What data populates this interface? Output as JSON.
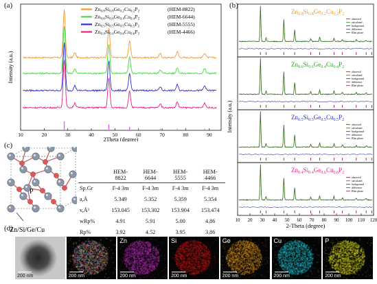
{
  "panels": {
    "a": "(a)",
    "b": "(b)",
    "c": "(c)",
    "d": "(d)"
  },
  "panel_a": {
    "xlabel": "2Theta (degree)",
    "ylabel": "Intensity (a.u.)",
    "xticks": [
      "10",
      "20",
      "30",
      "40",
      "50",
      "60",
      "70",
      "80",
      "90"
    ],
    "legend": [
      {
        "formula": "Zn0.8Si0.8Ge0.2Cu0.2P2",
        "parts": [
          [
            "Zn",
            ""
          ],
          [
            "0.8",
            "s"
          ],
          [
            "Si",
            ""
          ],
          [
            "0.8",
            "s"
          ],
          [
            "Ge",
            ""
          ],
          [
            "0.2",
            "s"
          ],
          [
            "Cu",
            ""
          ],
          [
            "0.2",
            "s"
          ],
          [
            "P",
            ""
          ],
          [
            "2",
            "s"
          ]
        ],
        "code": "(HEM-8822)",
        "color": "#f39a2e"
      },
      {
        "formula": "Zn0.6Si0.6Ge0.4Cu0.4P2",
        "parts": [
          [
            "Zn",
            ""
          ],
          [
            "0.6",
            "s"
          ],
          [
            "Si",
            ""
          ],
          [
            "0.6",
            "s"
          ],
          [
            "Ge",
            ""
          ],
          [
            "0.4",
            "s"
          ],
          [
            "Cu",
            ""
          ],
          [
            "0.4",
            "s"
          ],
          [
            "P",
            ""
          ],
          [
            "2",
            "s"
          ]
        ],
        "code": "(HEM-6644)",
        "color": "#3fdc3c"
      },
      {
        "formula": "Zn0.5Si0.5Ge0.5Cu0.5P2",
        "parts": [
          [
            "Zn",
            ""
          ],
          [
            "0.5",
            "s"
          ],
          [
            "Si",
            ""
          ],
          [
            "0.5",
            "s"
          ],
          [
            "Ge",
            ""
          ],
          [
            "0.5",
            "s"
          ],
          [
            "Cu",
            ""
          ],
          [
            "0.5",
            "s"
          ],
          [
            "P",
            ""
          ],
          [
            "2",
            "s"
          ]
        ],
        "code": "(HEM-5555)",
        "color": "#2a2ad6"
      },
      {
        "formula": "Zn0.4Si0.4Ge0.6Cu0.6P2",
        "parts": [
          [
            "Zn",
            ""
          ],
          [
            "0.4",
            "s"
          ],
          [
            "Si",
            ""
          ],
          [
            "0.4",
            "s"
          ],
          [
            "Ge",
            ""
          ],
          [
            "0.6",
            "s"
          ],
          [
            "Cu",
            ""
          ],
          [
            "0.6",
            "s"
          ],
          [
            "P",
            ""
          ],
          [
            "2",
            "s"
          ]
        ],
        "code": "(HEM-4466)",
        "color": "#e8207e"
      }
    ],
    "reference_color": "#e066e0"
  },
  "panel_b": {
    "xlabel": "2-Theta (degree)",
    "ylabel": "Intensity (a.u.)",
    "xticks": [
      "10",
      "20",
      "30",
      "40",
      "50",
      "60",
      "70",
      "80",
      "90",
      "100",
      "110",
      "120"
    ],
    "subplots": [
      {
        "parts": [
          [
            "Zn",
            ""
          ],
          [
            "0.8",
            "s"
          ],
          [
            "Si",
            ""
          ],
          [
            "0.8",
            "s"
          ],
          [
            "Ge",
            ""
          ],
          [
            "0.2",
            "s"
          ],
          [
            "Cu",
            ""
          ],
          [
            "0.2",
            "s"
          ],
          [
            "P",
            ""
          ],
          [
            "2",
            "s"
          ]
        ],
        "color": "#f39a2e"
      },
      {
        "parts": [
          [
            "Zn",
            ""
          ],
          [
            "0.6",
            "s"
          ],
          [
            "Si",
            ""
          ],
          [
            "0.6",
            "s"
          ],
          [
            "Ge",
            ""
          ],
          [
            "0.4",
            "s"
          ],
          [
            "Cu",
            ""
          ],
          [
            "0.4",
            "s"
          ],
          [
            "P",
            ""
          ],
          [
            "2",
            "s"
          ]
        ],
        "color": "#2e9e2e"
      },
      {
        "parts": [
          [
            "Zn",
            ""
          ],
          [
            "0.5",
            "s"
          ],
          [
            "Si",
            ""
          ],
          [
            "0.5",
            "s"
          ],
          [
            "Ge",
            ""
          ],
          [
            "0.5",
            "s"
          ],
          [
            "Cu",
            ""
          ],
          [
            "0.5",
            "s"
          ],
          [
            "P",
            ""
          ],
          [
            "2",
            "s"
          ]
        ],
        "color": "#2a2ad6"
      },
      {
        "parts": [
          [
            "Zn",
            ""
          ],
          [
            "0.4",
            "s"
          ],
          [
            "Si",
            ""
          ],
          [
            "0.4",
            "s"
          ],
          [
            "Ge",
            ""
          ],
          [
            "0.6",
            "s"
          ],
          [
            "Cu",
            ""
          ],
          [
            "0.6",
            "s"
          ],
          [
            "P",
            ""
          ],
          [
            "2",
            "s"
          ]
        ],
        "color": "#e8207e"
      }
    ],
    "fit_legend": [
      "observed",
      "calculated",
      "background",
      "difference",
      "B3m phase"
    ]
  },
  "panel_c": {
    "structure_label": "Zn/Si/Ge/Cu",
    "p_label": "P",
    "columns": [
      "HEM-8822",
      "HEM-6644",
      "HEM-5555",
      "HEM-4466"
    ],
    "rows": [
      {
        "name": "Sp.Gr",
        "values": [
          "F-4 3m",
          "F-4 3m",
          "F-4 3m",
          "F-4 3m"
        ]
      },
      {
        "name": "a,Å",
        "values": [
          "5.349",
          "5.352",
          "5.359",
          "5.354"
        ]
      },
      {
        "name": "v,Å³",
        "values": [
          "153.045",
          "153.302",
          "153.904",
          "153.474"
        ]
      },
      {
        "name": "wRp%",
        "values": [
          "4.91",
          "5.91",
          "5.00",
          "4.86"
        ]
      },
      {
        "name": "Rp%",
        "values": [
          "3.92",
          "4.52",
          "3.95",
          "3.86"
        ]
      }
    ]
  },
  "panel_d": {
    "scale_bar": "200 nm",
    "maps": [
      {
        "label": "",
        "color": "#bcbcbc"
      },
      {
        "label": "",
        "color": "#e8e070"
      },
      {
        "label": "Zn",
        "color": "#cc33cc"
      },
      {
        "label": "Si",
        "color": "#e01818"
      },
      {
        "label": "Ge",
        "color": "#f0a020"
      },
      {
        "label": "Cu",
        "color": "#22d8e8"
      },
      {
        "label": "P",
        "color": "#f2f020"
      }
    ]
  }
}
